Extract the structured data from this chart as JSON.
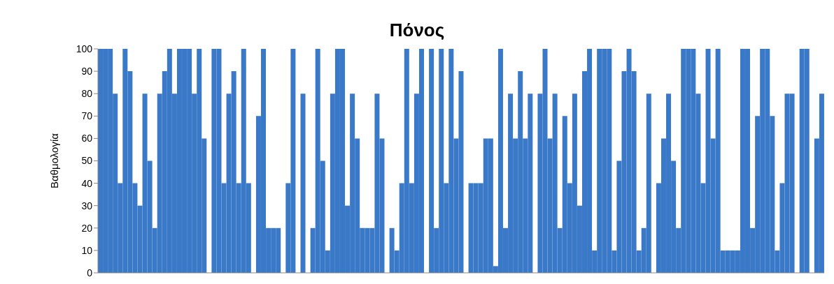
{
  "chart_data": {
    "type": "bar",
    "title": "Πόνος",
    "ylabel": "Βαθμολογία",
    "categories": [
      null,
      null,
      null,
      null,
      null,
      null,
      null,
      null,
      null,
      null,
      null,
      null,
      null,
      null,
      null,
      null,
      null,
      null,
      null,
      null,
      null,
      null,
      null,
      null,
      null,
      null,
      null,
      null,
      null,
      null,
      null,
      null,
      null,
      null,
      null,
      null,
      null,
      null,
      null,
      null,
      null,
      null,
      null,
      null,
      null,
      null,
      null,
      null,
      null,
      null,
      null,
      null,
      null,
      null,
      null,
      null,
      null,
      null,
      null,
      null,
      null,
      null,
      null,
      null,
      null,
      null,
      null,
      null,
      null,
      null,
      null,
      null,
      null,
      null,
      null,
      null,
      null,
      null,
      null,
      null,
      null,
      null,
      null,
      null,
      null,
      null,
      null,
      null,
      null,
      null,
      null,
      null,
      null,
      null,
      null,
      null,
      null,
      null,
      null,
      null,
      null,
      null,
      null,
      null,
      null,
      null,
      null,
      null,
      null,
      null,
      null,
      null,
      null,
      null,
      null,
      null,
      null,
      null,
      null,
      null,
      null,
      null,
      null,
      null,
      null,
      null,
      null,
      null,
      null,
      null,
      null,
      null,
      null,
      null,
      null,
      null,
      null,
      null,
      null,
      null,
      null,
      null,
      null,
      null,
      null,
      null,
      null
    ],
    "values": [
      100,
      100,
      100,
      80,
      40,
      100,
      90,
      40,
      30,
      80,
      50,
      20,
      80,
      90,
      100,
      80,
      100,
      100,
      100,
      80,
      100,
      60,
      null,
      100,
      100,
      40,
      80,
      90,
      40,
      100,
      40,
      null,
      70,
      100,
      20,
      20,
      20,
      null,
      40,
      100,
      null,
      80,
      null,
      20,
      100,
      50,
      10,
      80,
      100,
      100,
      30,
      80,
      60,
      20,
      20,
      20,
      80,
      60,
      null,
      20,
      10,
      40,
      100,
      40,
      80,
      100,
      null,
      100,
      20,
      100,
      40,
      100,
      60,
      90,
      null,
      40,
      40,
      40,
      60,
      60,
      3,
      100,
      20,
      80,
      60,
      90,
      60,
      80,
      null,
      80,
      100,
      60,
      80,
      20,
      70,
      40,
      80,
      30,
      90,
      100,
      10,
      100,
      100,
      100,
      10,
      50,
      90,
      100,
      90,
      10,
      20,
      80,
      null,
      40,
      60,
      80,
      50,
      20,
      100,
      100,
      100,
      80,
      40,
      100,
      60,
      100,
      10,
      10,
      10,
      10,
      100,
      100,
      20,
      70,
      100,
      100,
      70,
      10,
      40,
      80,
      80,
      null,
      100,
      100,
      null,
      60,
      80
    ],
    "color": "#3a78c8",
    "ylim": [
      0,
      100
    ],
    "yticks": [
      0,
      10,
      20,
      30,
      40,
      50,
      60,
      70,
      80,
      90,
      100
    ],
    "grid": false,
    "legend": false
  }
}
